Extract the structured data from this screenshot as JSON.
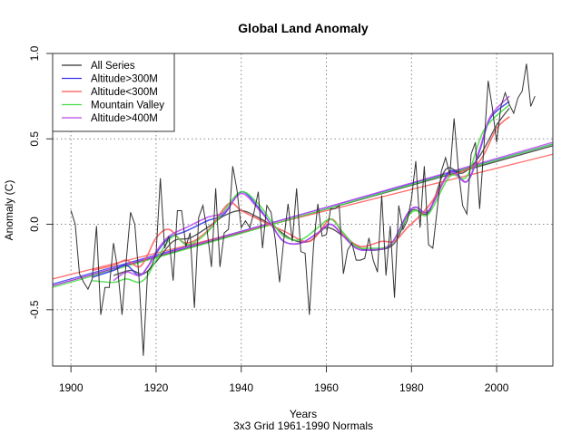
{
  "chart_data": {
    "type": "line",
    "title": "Global Land Anomaly",
    "xlabel": "Years",
    "subtitle": "3x3 Grid 1961-1990 Normals",
    "ylabel": "Anomaly (C)",
    "xlim": [
      1895.7,
      2013.2
    ],
    "ylim": [
      -0.83,
      1.0
    ],
    "x_ticks": [
      1900,
      1920,
      1940,
      1960,
      1980,
      2000
    ],
    "x_tick_labels": [
      "1900",
      "1920",
      "1940",
      "1960",
      "1980",
      "2000"
    ],
    "y_ticks": [
      -0.5,
      0.0,
      0.5,
      1.0
    ],
    "y_tick_labels": [
      "-0.5",
      "0.0",
      "0.5",
      "1.0"
    ],
    "grid": true,
    "legend_position": "top-left",
    "series": [
      {
        "name": "All Series",
        "color": "#333333",
        "kind": "annual",
        "x_start": 1900,
        "values": [
          0.08,
          0.0,
          -0.29,
          -0.34,
          -0.38,
          -0.32,
          -0.01,
          -0.53,
          -0.37,
          -0.37,
          -0.11,
          -0.27,
          -0.53,
          -0.21,
          0.07,
          0.0,
          -0.32,
          -0.77,
          -0.28,
          -0.24,
          -0.17,
          0.27,
          -0.14,
          -0.07,
          -0.33,
          0.08,
          0.08,
          -0.13,
          -0.05,
          -0.49,
          0.04,
          0.11,
          -0.04,
          -0.25,
          0.21,
          -0.25,
          -0.05,
          -0.03,
          0.34,
          0.2,
          -0.02,
          0.02,
          -0.02,
          0.07,
          0.19,
          -0.14,
          0.11,
          0.07,
          -0.09,
          -0.34,
          -0.09,
          0.12,
          -0.1,
          0.21,
          -0.16,
          -0.17,
          -0.53,
          -0.12,
          0.12,
          -0.07,
          -0.06,
          0.09,
          0.09,
          0.11,
          -0.29,
          -0.15,
          -0.11,
          -0.21,
          -0.21,
          -0.2,
          -0.08,
          -0.21,
          -0.28,
          0.17,
          -0.3,
          -0.01,
          -0.43,
          0.11,
          -0.03,
          0.02,
          0.15,
          0.37,
          -0.02,
          0.34,
          -0.12,
          -0.14,
          0.08,
          0.31,
          0.39,
          0.29,
          0.62,
          0.32,
          0.11,
          0.06,
          0.41,
          0.48,
          0.09,
          0.45,
          0.84,
          0.68,
          0.48,
          0.69,
          0.77,
          0.7,
          0.65,
          0.74,
          0.78,
          0.94,
          0.69,
          0.75
        ]
      },
      {
        "name": "All Series smooth",
        "color": "#333333",
        "kind": "smooth",
        "x": [
          1910,
          1914,
          1917,
          1920,
          1924,
          1928,
          1932,
          1936,
          1940,
          1944,
          1948,
          1952,
          1956,
          1960,
          1964,
          1968,
          1972,
          1976,
          1980,
          1984,
          1988,
          1992,
          1996,
          2000,
          2003
        ],
        "values": [
          -0.3,
          -0.27,
          -0.29,
          -0.22,
          -0.1,
          -0.08,
          -0.02,
          0.05,
          0.08,
          0.04,
          -0.02,
          -0.09,
          -0.1,
          -0.02,
          -0.07,
          -0.14,
          -0.15,
          -0.11,
          0.08,
          0.07,
          0.32,
          0.3,
          0.4,
          0.58,
          0.68
        ]
      },
      {
        "name": "Altitude>300M",
        "color": "#3333ee",
        "kind": "smooth",
        "x": [
          1905,
          1910,
          1913,
          1916,
          1918,
          1920,
          1923,
          1927,
          1932,
          1936,
          1940,
          1944,
          1947,
          1950,
          1954,
          1958,
          1961,
          1964,
          1967,
          1970,
          1975,
          1979,
          1981,
          1984,
          1989,
          1993,
          1996,
          1998.5,
          2003
        ],
        "values": [
          -0.31,
          -0.27,
          -0.24,
          -0.3,
          -0.25,
          -0.17,
          -0.08,
          -0.04,
          0.02,
          0.06,
          0.19,
          0.1,
          0.0,
          -0.1,
          -0.11,
          -0.05,
          0.0,
          -0.07,
          -0.14,
          -0.15,
          -0.12,
          0.06,
          0.1,
          0.08,
          0.31,
          0.25,
          0.43,
          0.62,
          0.72
        ]
      },
      {
        "name": "Altitude<300M",
        "color": "#ff5555",
        "kind": "smooth",
        "x": [
          1905,
          1910,
          1913,
          1916,
          1918,
          1920,
          1923,
          1927,
          1932,
          1937,
          1940,
          1944,
          1950,
          1956,
          1961,
          1964,
          1968,
          1973,
          1976,
          1979,
          1982,
          1985,
          1988,
          1991,
          1996,
          2000,
          2003
        ],
        "values": [
          -0.27,
          -0.24,
          -0.21,
          -0.25,
          -0.18,
          -0.08,
          -0.03,
          -0.11,
          -0.04,
          0.12,
          0.08,
          0.03,
          -0.04,
          -0.1,
          0.03,
          -0.06,
          -0.13,
          -0.1,
          -0.1,
          -0.02,
          0.05,
          0.14,
          0.27,
          0.3,
          0.37,
          0.56,
          0.63
        ]
      },
      {
        "name": "Mountain Valley",
        "color": "#44dd44",
        "kind": "smooth",
        "x": [
          1905,
          1910,
          1913,
          1916,
          1918,
          1920,
          1924,
          1927,
          1930,
          1933,
          1936,
          1940,
          1944,
          1947,
          1950,
          1954,
          1958,
          1961,
          1964,
          1967,
          1970,
          1975,
          1979,
          1981,
          1984,
          1989,
          1993,
          1997,
          2003
        ],
        "values": [
          -0.33,
          -0.34,
          -0.32,
          -0.34,
          -0.3,
          -0.21,
          -0.07,
          -0.12,
          -0.09,
          -0.02,
          0.08,
          0.19,
          0.12,
          0.02,
          -0.07,
          -0.09,
          -0.02,
          0.03,
          -0.05,
          -0.13,
          -0.14,
          -0.12,
          0.04,
          0.08,
          0.06,
          0.28,
          0.28,
          0.55,
          0.7
        ]
      },
      {
        "name": "Altitude>400M",
        "color": "#bb44ee",
        "kind": "smooth",
        "x": [
          1910,
          1913,
          1916,
          1918,
          1920,
          1923,
          1927,
          1932,
          1936,
          1940,
          1944,
          1947,
          1950,
          1954,
          1958,
          1961,
          1964,
          1967,
          1970,
          1975,
          1979,
          1981,
          1984,
          1989,
          1993,
          1996,
          1998.5,
          2003
        ],
        "values": [
          -0.33,
          -0.28,
          -0.3,
          -0.25,
          -0.16,
          -0.07,
          -0.02,
          0.04,
          0.07,
          0.18,
          0.09,
          0.0,
          -0.1,
          -0.11,
          -0.05,
          0.0,
          -0.07,
          -0.14,
          -0.15,
          -0.12,
          0.06,
          0.1,
          0.08,
          0.3,
          0.25,
          0.44,
          0.63,
          0.75
        ]
      }
    ],
    "trend_lines": [
      {
        "name": "All Series trend",
        "color": "#333333",
        "x": [
          1895.7,
          2013.2
        ],
        "values": [
          -0.36,
          0.46
        ]
      },
      {
        "name": "Altitude>300M trend",
        "color": "#3333ee",
        "x": [
          1895.7,
          2013.2
        ],
        "values": [
          -0.35,
          0.47
        ]
      },
      {
        "name": "Altitude<300M trend",
        "color": "#ff5555",
        "x": [
          1895.7,
          2013.2
        ],
        "values": [
          -0.32,
          0.41
        ]
      },
      {
        "name": "Mountain Valley trend",
        "color": "#44dd44",
        "x": [
          1895.7,
          2013.2
        ],
        "values": [
          -0.37,
          0.47
        ]
      },
      {
        "name": "Altitude>400M trend",
        "color": "#bb44ee",
        "x": [
          1895.7,
          2013.2
        ],
        "values": [
          -0.36,
          0.48
        ]
      }
    ],
    "legend": [
      {
        "label": "All Series",
        "color": "#333333"
      },
      {
        "label": "Altitude>300M",
        "color": "#3333ee"
      },
      {
        "label": "Altitude<300M",
        "color": "#ff5555"
      },
      {
        "label": "Mountain Valley",
        "color": "#44dd44"
      },
      {
        "label": "Altitude>400M",
        "color": "#bb44ee"
      }
    ]
  }
}
